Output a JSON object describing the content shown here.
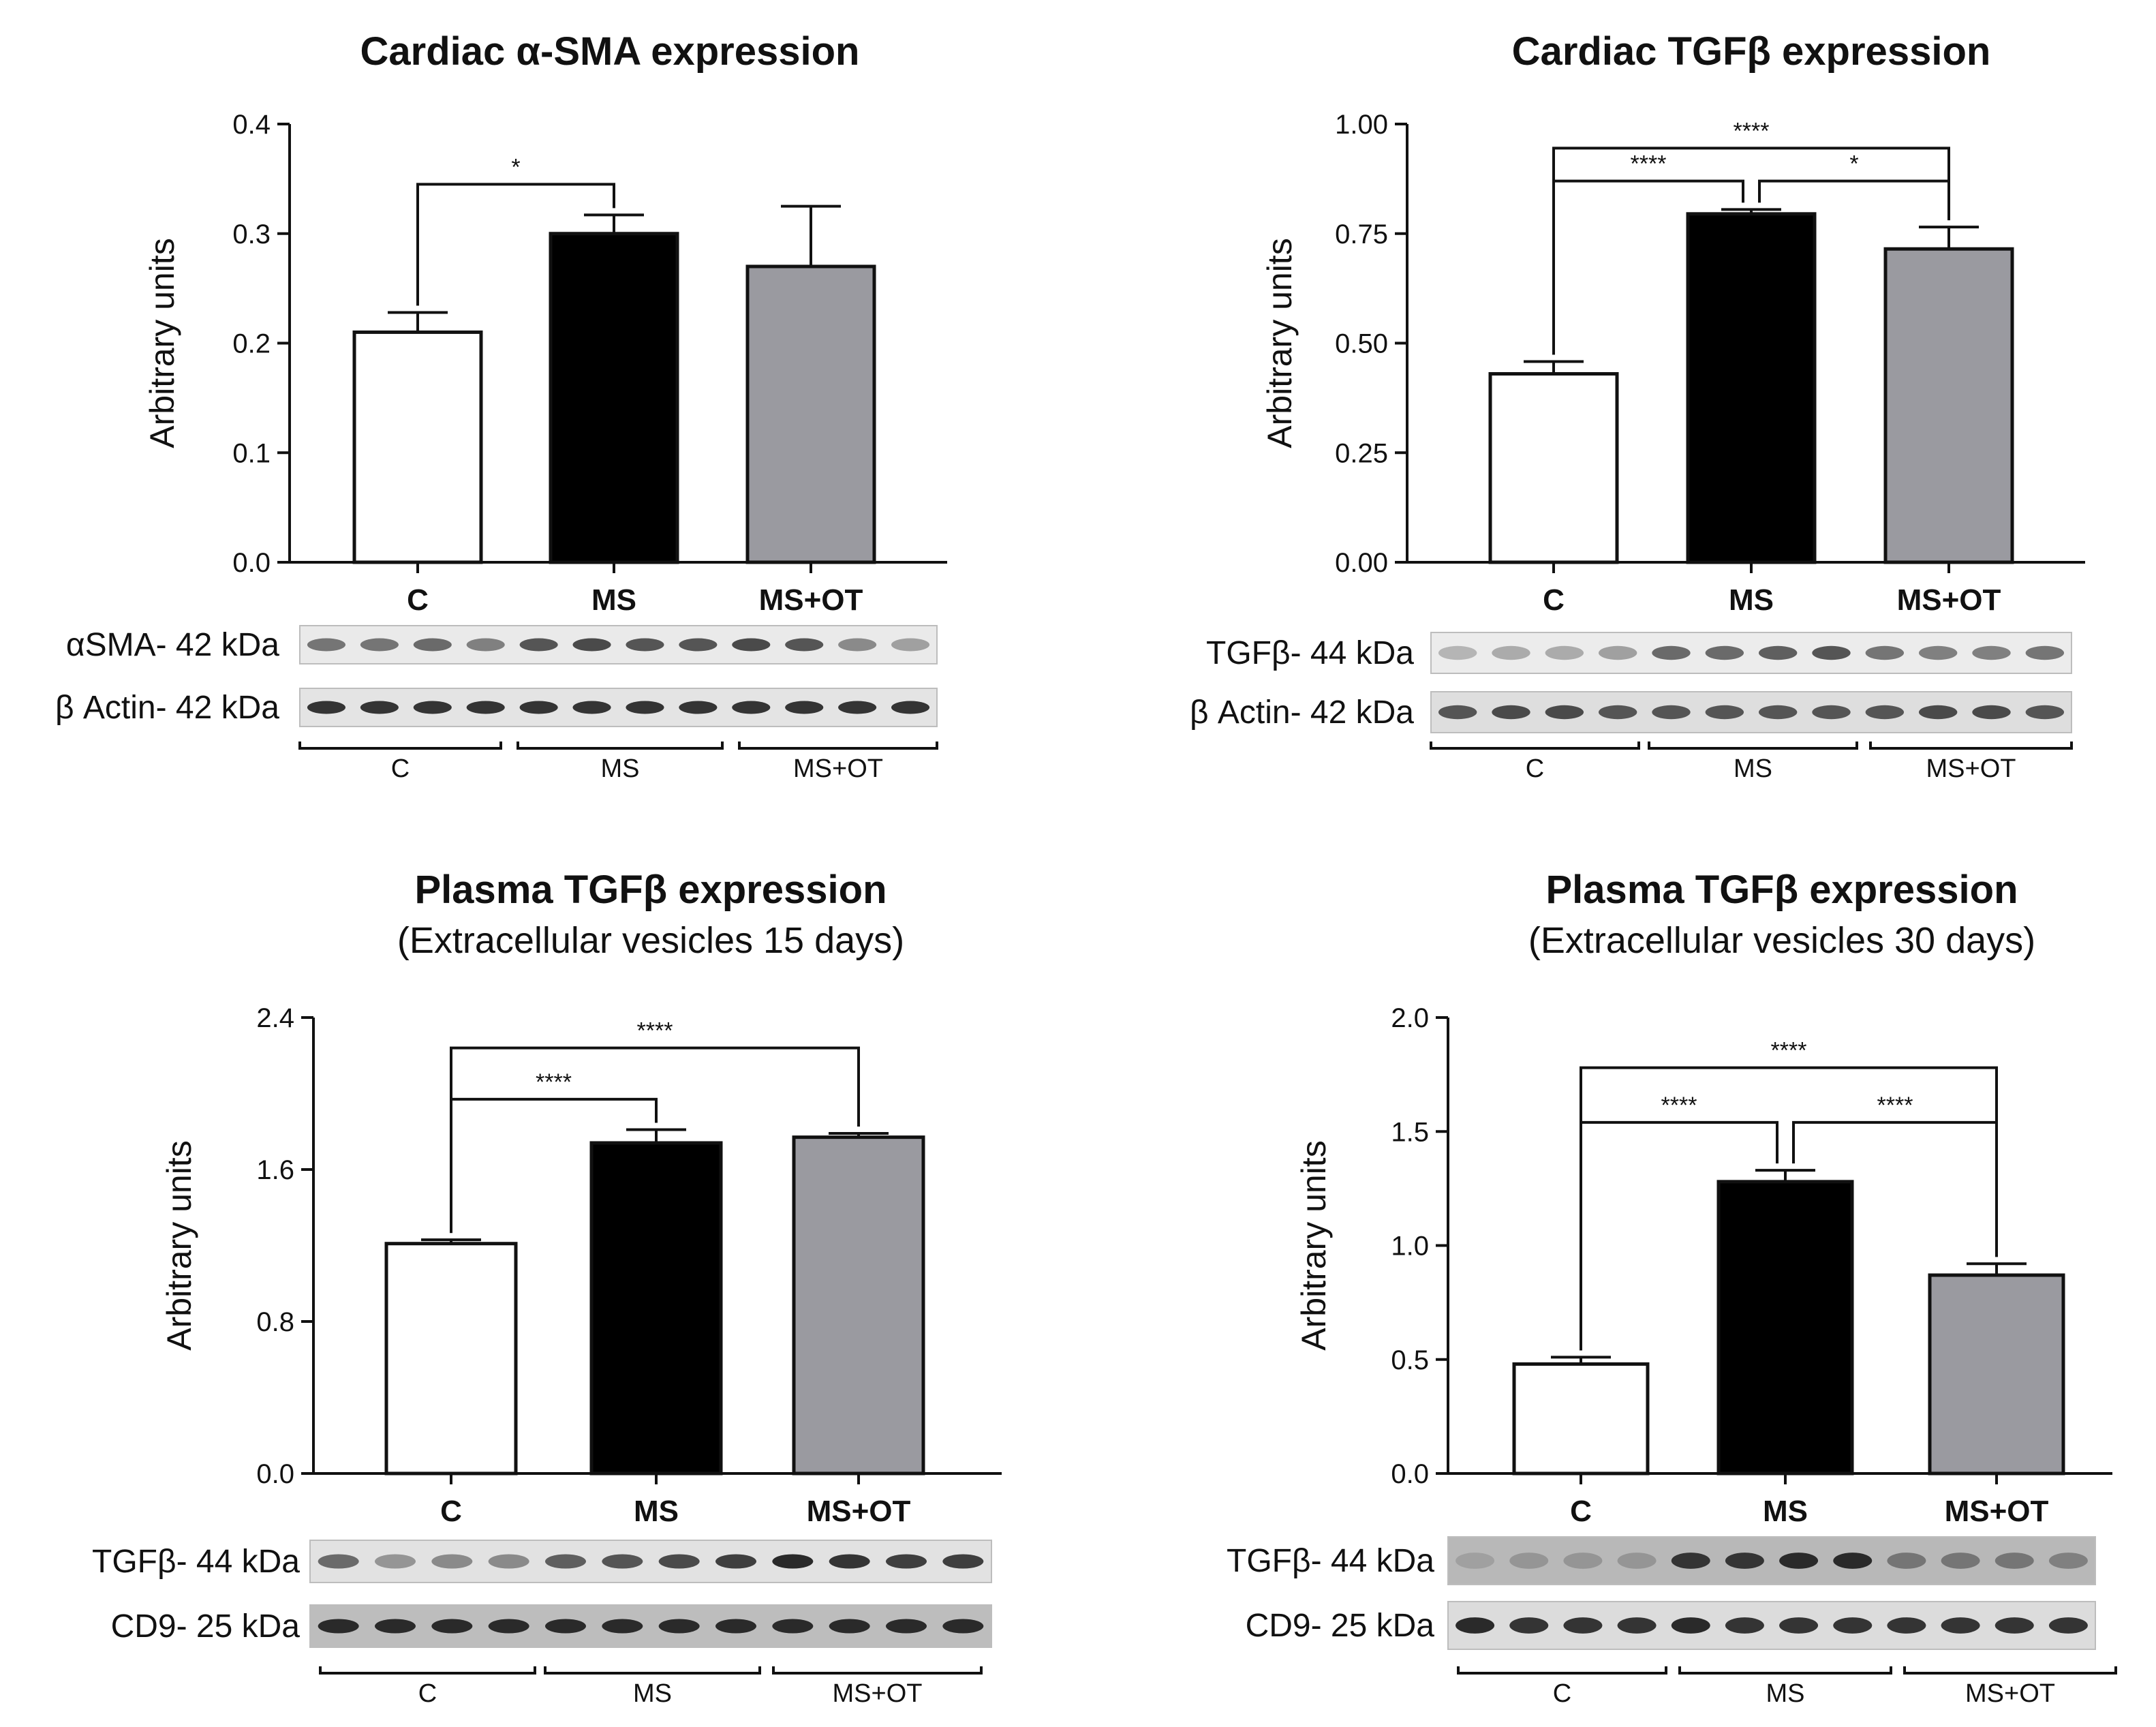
{
  "colors": {
    "C": "#ffffff",
    "MS": "#000000",
    "MS+OT": "#9a9aa0",
    "stroke": "#111111"
  },
  "panels": [
    {
      "title": "Cardiac α-SMA expression",
      "subtitle": "",
      "blots": [
        {
          "label": "αSMA- 42 kDa",
          "bg": "#eaeaea",
          "intensities": [
            0.55,
            0.55,
            0.6,
            0.5,
            0.7,
            0.75,
            0.7,
            0.7,
            0.75,
            0.7,
            0.45,
            0.35
          ]
        },
        {
          "label": "β Actin- 42 kDa",
          "bg": "#e4e4e4",
          "intensities": [
            0.85,
            0.85,
            0.85,
            0.85,
            0.85,
            0.85,
            0.85,
            0.85,
            0.85,
            0.85,
            0.85,
            0.85
          ]
        }
      ],
      "groups": [
        "C",
        "MS",
        "MS+OT"
      ]
    },
    {
      "title": "Cardiac TGFβ expression",
      "subtitle": "",
      "blots": [
        {
          "label": "TGFβ- 44 kDa",
          "bg": "#ececec",
          "intensities": [
            0.25,
            0.3,
            0.3,
            0.35,
            0.6,
            0.6,
            0.65,
            0.7,
            0.55,
            0.5,
            0.5,
            0.55
          ]
        },
        {
          "label": "β Actin- 42 kDa",
          "bg": "#dedede",
          "intensities": [
            0.7,
            0.75,
            0.75,
            0.7,
            0.7,
            0.7,
            0.7,
            0.7,
            0.7,
            0.75,
            0.75,
            0.7
          ]
        }
      ],
      "groups": [
        "C",
        "MS",
        "MS+OT"
      ]
    },
    {
      "title": "Plasma TGFβ expression",
      "subtitle": "(Extracellular vesicles 15 days)",
      "blots": [
        {
          "label": "TGFβ- 44 kDa",
          "bg": "#e2e2e2",
          "intensities": [
            0.6,
            0.4,
            0.45,
            0.45,
            0.65,
            0.7,
            0.75,
            0.8,
            0.9,
            0.85,
            0.8,
            0.8
          ]
        },
        {
          "label": "CD9- 25 kDa",
          "bg": "#bdbdbd",
          "intensities": [
            0.9,
            0.9,
            0.9,
            0.9,
            0.9,
            0.9,
            0.9,
            0.9,
            0.9,
            0.9,
            0.9,
            0.9
          ]
        }
      ],
      "groups": [
        "C",
        "MS",
        "MS+OT"
      ]
    },
    {
      "title": "Plasma TGFβ expression",
      "subtitle": "(Extracellular vesicles 30 days)",
      "blots": [
        {
          "label": "TGFβ- 44 kDa",
          "bg": "#b8b8b8",
          "intensities": [
            0.35,
            0.4,
            0.4,
            0.4,
            0.85,
            0.85,
            0.9,
            0.9,
            0.55,
            0.55,
            0.55,
            0.5
          ]
        },
        {
          "label": "CD9- 25 kDa",
          "bg": "#dcdcdc",
          "intensities": [
            0.9,
            0.85,
            0.85,
            0.85,
            0.9,
            0.85,
            0.85,
            0.85,
            0.85,
            0.85,
            0.85,
            0.85
          ]
        }
      ],
      "groups": [
        "C",
        "MS",
        "MS+OT"
      ]
    }
  ],
  "chart_data": [
    {
      "type": "bar",
      "title": "Cardiac α-SMA expression",
      "ylabel": "Arbitrary units",
      "categories": [
        "C",
        "MS",
        "MS+OT"
      ],
      "values": [
        0.21,
        0.3,
        0.27
      ],
      "errors": [
        0.018,
        0.017,
        0.055
      ],
      "ylim": [
        0,
        0.4
      ],
      "yticks": [
        "0.0",
        "0.1",
        "0.2",
        "0.3",
        "0.4"
      ],
      "significance": [
        {
          "from": 0,
          "to": 1,
          "label": "*",
          "level": 0.345
        }
      ]
    },
    {
      "type": "bar",
      "title": "Cardiac TGFβ expression",
      "ylabel": "Arbitrary units",
      "categories": [
        "C",
        "MS",
        "MS+OT"
      ],
      "values": [
        0.43,
        0.795,
        0.715
      ],
      "errors": [
        0.028,
        0.01,
        0.05
      ],
      "ylim": [
        0,
        1.0
      ],
      "yticks": [
        "0.00",
        "0.25",
        "0.50",
        "0.75",
        "1.00"
      ],
      "significance": [
        {
          "from": 0,
          "to": 2,
          "label": "****",
          "level": 0.945
        },
        {
          "from": 0,
          "to": 1,
          "label": "****",
          "level": 0.87
        },
        {
          "from": 1,
          "to": 2,
          "label": "*",
          "level": 0.87
        }
      ]
    },
    {
      "type": "bar",
      "title": "Plasma TGFβ expression",
      "subtitle": "(Extracellular vesicles 15 days)",
      "ylabel": "Arbitrary units",
      "categories": [
        "C",
        "MS",
        "MS+OT"
      ],
      "values": [
        1.21,
        1.74,
        1.77
      ],
      "errors": [
        0.02,
        0.07,
        0.02
      ],
      "ylim": [
        0,
        2.4
      ],
      "yticks": [
        "0.0",
        "0.8",
        "1.6",
        "2.4"
      ],
      "significance": [
        {
          "from": 0,
          "to": 2,
          "label": "****",
          "level": 2.24
        },
        {
          "from": 0,
          "to": 1,
          "label": "****",
          "level": 1.97
        }
      ]
    },
    {
      "type": "bar",
      "title": "Plasma TGFβ expression",
      "subtitle": "(Extracellular vesicles 30 days)",
      "ylabel": "Arbitrary units",
      "categories": [
        "C",
        "MS",
        "MS+OT"
      ],
      "values": [
        0.48,
        1.28,
        0.87
      ],
      "errors": [
        0.03,
        0.05,
        0.05
      ],
      "ylim": [
        0,
        2.0
      ],
      "yticks": [
        "0.0",
        "0.5",
        "1.0",
        "1.5",
        "2.0"
      ],
      "significance": [
        {
          "from": 0,
          "to": 2,
          "label": "****",
          "level": 1.78
        },
        {
          "from": 0,
          "to": 1,
          "label": "****",
          "level": 1.54
        },
        {
          "from": 1,
          "to": 2,
          "label": "****",
          "level": 1.54
        }
      ]
    }
  ]
}
